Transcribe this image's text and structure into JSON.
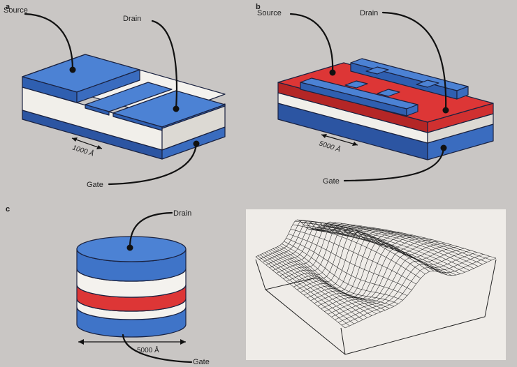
{
  "panels": {
    "a": {
      "letter": "a",
      "source_label": "Source",
      "drain_label": "Drain",
      "gate_label": "Gate",
      "scale_label": "1000 Å"
    },
    "b": {
      "letter": "b",
      "source_label": "Source",
      "drain_label": "Drain",
      "gate_label": "Gate",
      "scale_label": "5000 Å"
    },
    "c": {
      "letter": "c",
      "drain_label": "Drain",
      "gate_label": "Gate",
      "scale_label": "5000 Å"
    }
  },
  "colors": {
    "background": "#c9c6c4",
    "blue": "#3f74c8",
    "blue_dark": "#2c55a2",
    "blue_top": "#4c82d4",
    "red": "#dd3636",
    "red_dark": "#b42626",
    "white_layer": "#f4f2ee",
    "white_shade": "#dcd9d3",
    "mesh_stroke": "#222222",
    "mesh_panel": "#efece8"
  }
}
